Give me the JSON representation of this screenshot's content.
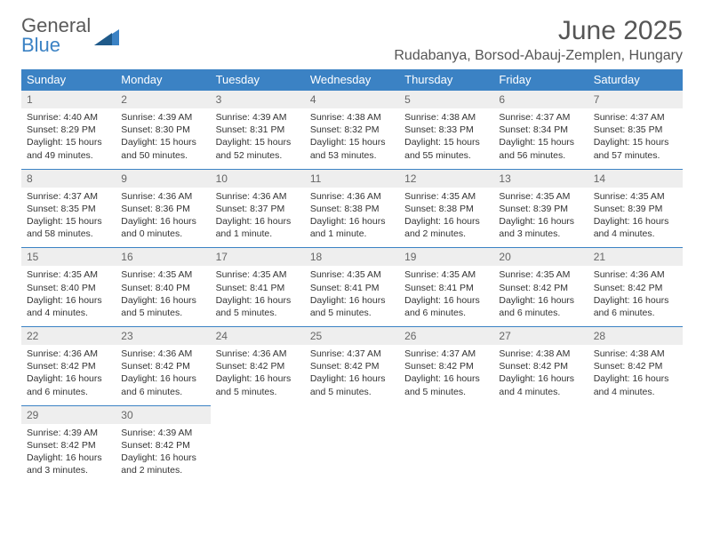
{
  "logo": {
    "text1": "General",
    "text2": "Blue"
  },
  "header": {
    "month": "June 2025",
    "location": "Rudabanya, Borsod-Abauj-Zemplen, Hungary"
  },
  "colors": {
    "header_bg": "#3b82c4",
    "header_text": "#ffffff",
    "daynum_bg": "#eeeeee",
    "daynum_text": "#666666",
    "border": "#3b82c4",
    "body_text": "#333333",
    "title_text": "#555555"
  },
  "dayNames": [
    "Sunday",
    "Monday",
    "Tuesday",
    "Wednesday",
    "Thursday",
    "Friday",
    "Saturday"
  ],
  "weeks": [
    [
      {
        "n": "1",
        "sr": "Sunrise: 4:40 AM",
        "ss": "Sunset: 8:29 PM",
        "dl": "Daylight: 15 hours and 49 minutes."
      },
      {
        "n": "2",
        "sr": "Sunrise: 4:39 AM",
        "ss": "Sunset: 8:30 PM",
        "dl": "Daylight: 15 hours and 50 minutes."
      },
      {
        "n": "3",
        "sr": "Sunrise: 4:39 AM",
        "ss": "Sunset: 8:31 PM",
        "dl": "Daylight: 15 hours and 52 minutes."
      },
      {
        "n": "4",
        "sr": "Sunrise: 4:38 AM",
        "ss": "Sunset: 8:32 PM",
        "dl": "Daylight: 15 hours and 53 minutes."
      },
      {
        "n": "5",
        "sr": "Sunrise: 4:38 AM",
        "ss": "Sunset: 8:33 PM",
        "dl": "Daylight: 15 hours and 55 minutes."
      },
      {
        "n": "6",
        "sr": "Sunrise: 4:37 AM",
        "ss": "Sunset: 8:34 PM",
        "dl": "Daylight: 15 hours and 56 minutes."
      },
      {
        "n": "7",
        "sr": "Sunrise: 4:37 AM",
        "ss": "Sunset: 8:35 PM",
        "dl": "Daylight: 15 hours and 57 minutes."
      }
    ],
    [
      {
        "n": "8",
        "sr": "Sunrise: 4:37 AM",
        "ss": "Sunset: 8:35 PM",
        "dl": "Daylight: 15 hours and 58 minutes."
      },
      {
        "n": "9",
        "sr": "Sunrise: 4:36 AM",
        "ss": "Sunset: 8:36 PM",
        "dl": "Daylight: 16 hours and 0 minutes."
      },
      {
        "n": "10",
        "sr": "Sunrise: 4:36 AM",
        "ss": "Sunset: 8:37 PM",
        "dl": "Daylight: 16 hours and 1 minute."
      },
      {
        "n": "11",
        "sr": "Sunrise: 4:36 AM",
        "ss": "Sunset: 8:38 PM",
        "dl": "Daylight: 16 hours and 1 minute."
      },
      {
        "n": "12",
        "sr": "Sunrise: 4:35 AM",
        "ss": "Sunset: 8:38 PM",
        "dl": "Daylight: 16 hours and 2 minutes."
      },
      {
        "n": "13",
        "sr": "Sunrise: 4:35 AM",
        "ss": "Sunset: 8:39 PM",
        "dl": "Daylight: 16 hours and 3 minutes."
      },
      {
        "n": "14",
        "sr": "Sunrise: 4:35 AM",
        "ss": "Sunset: 8:39 PM",
        "dl": "Daylight: 16 hours and 4 minutes."
      }
    ],
    [
      {
        "n": "15",
        "sr": "Sunrise: 4:35 AM",
        "ss": "Sunset: 8:40 PM",
        "dl": "Daylight: 16 hours and 4 minutes."
      },
      {
        "n": "16",
        "sr": "Sunrise: 4:35 AM",
        "ss": "Sunset: 8:40 PM",
        "dl": "Daylight: 16 hours and 5 minutes."
      },
      {
        "n": "17",
        "sr": "Sunrise: 4:35 AM",
        "ss": "Sunset: 8:41 PM",
        "dl": "Daylight: 16 hours and 5 minutes."
      },
      {
        "n": "18",
        "sr": "Sunrise: 4:35 AM",
        "ss": "Sunset: 8:41 PM",
        "dl": "Daylight: 16 hours and 5 minutes."
      },
      {
        "n": "19",
        "sr": "Sunrise: 4:35 AM",
        "ss": "Sunset: 8:41 PM",
        "dl": "Daylight: 16 hours and 6 minutes."
      },
      {
        "n": "20",
        "sr": "Sunrise: 4:35 AM",
        "ss": "Sunset: 8:42 PM",
        "dl": "Daylight: 16 hours and 6 minutes."
      },
      {
        "n": "21",
        "sr": "Sunrise: 4:36 AM",
        "ss": "Sunset: 8:42 PM",
        "dl": "Daylight: 16 hours and 6 minutes."
      }
    ],
    [
      {
        "n": "22",
        "sr": "Sunrise: 4:36 AM",
        "ss": "Sunset: 8:42 PM",
        "dl": "Daylight: 16 hours and 6 minutes."
      },
      {
        "n": "23",
        "sr": "Sunrise: 4:36 AM",
        "ss": "Sunset: 8:42 PM",
        "dl": "Daylight: 16 hours and 6 minutes."
      },
      {
        "n": "24",
        "sr": "Sunrise: 4:36 AM",
        "ss": "Sunset: 8:42 PM",
        "dl": "Daylight: 16 hours and 5 minutes."
      },
      {
        "n": "25",
        "sr": "Sunrise: 4:37 AM",
        "ss": "Sunset: 8:42 PM",
        "dl": "Daylight: 16 hours and 5 minutes."
      },
      {
        "n": "26",
        "sr": "Sunrise: 4:37 AM",
        "ss": "Sunset: 8:42 PM",
        "dl": "Daylight: 16 hours and 5 minutes."
      },
      {
        "n": "27",
        "sr": "Sunrise: 4:38 AM",
        "ss": "Sunset: 8:42 PM",
        "dl": "Daylight: 16 hours and 4 minutes."
      },
      {
        "n": "28",
        "sr": "Sunrise: 4:38 AM",
        "ss": "Sunset: 8:42 PM",
        "dl": "Daylight: 16 hours and 4 minutes."
      }
    ],
    [
      {
        "n": "29",
        "sr": "Sunrise: 4:39 AM",
        "ss": "Sunset: 8:42 PM",
        "dl": "Daylight: 16 hours and 3 minutes."
      },
      {
        "n": "30",
        "sr": "Sunrise: 4:39 AM",
        "ss": "Sunset: 8:42 PM",
        "dl": "Daylight: 16 hours and 2 minutes."
      },
      null,
      null,
      null,
      null,
      null
    ]
  ]
}
